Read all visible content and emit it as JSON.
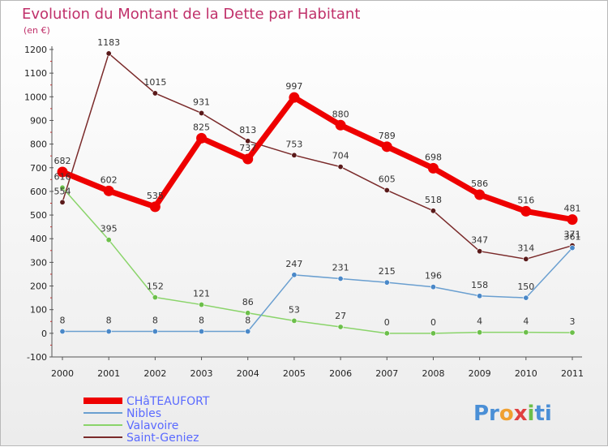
{
  "title": "Evolution du Montant de la Dette par Habitant",
  "subtitle": "(en €)",
  "logo": {
    "parts": [
      "Pr",
      "o",
      "x",
      "i",
      "ti"
    ],
    "colors": [
      "#4a8fd6",
      "#f0a030",
      "#e04040",
      "#6cbf4a",
      "#4a8fd6"
    ]
  },
  "chart_data": {
    "type": "line",
    "x": [
      "2000",
      "2001",
      "2002",
      "2003",
      "2004",
      "2005",
      "2006",
      "2007",
      "2008",
      "2009",
      "2010",
      "2011"
    ],
    "ylim": [
      -100,
      1200
    ],
    "yticks": [
      -100,
      0,
      100,
      200,
      300,
      400,
      500,
      600,
      700,
      800,
      900,
      1000,
      1100,
      1200
    ],
    "grid": false,
    "legend_position": "bottom-left",
    "series": [
      {
        "name": "Saint-Geniez",
        "color": "#7a2a2a",
        "dot": "#5a1a1a",
        "width": 1.5,
        "values": [
          554,
          1183,
          1015,
          931,
          813,
          753,
          704,
          605,
          518,
          347,
          314,
          371
        ]
      },
      {
        "name": "Valavoire",
        "color": "#8ad46a",
        "dot": "#6cbf4a",
        "width": 1.5,
        "values": [
          616,
          395,
          152,
          121,
          86,
          53,
          27,
          0,
          0,
          4,
          4,
          3
        ]
      },
      {
        "name": "Nibles",
        "color": "#6a9fd0",
        "dot": "#4a88c8",
        "width": 1.5,
        "values": [
          8,
          8,
          8,
          8,
          8,
          247,
          231,
          215,
          196,
          158,
          150,
          361
        ]
      },
      {
        "name": "CHâTEAUFORT",
        "color": "#ee0000",
        "dot": "#ee0000",
        "width": 7,
        "values": [
          682,
          602,
          535,
          825,
          737,
          997,
          880,
          789,
          698,
          586,
          516,
          481
        ]
      }
    ],
    "legend_order": [
      "CHâTEAUFORT",
      "Nibles",
      "Valavoire",
      "Saint-Geniez"
    ]
  }
}
